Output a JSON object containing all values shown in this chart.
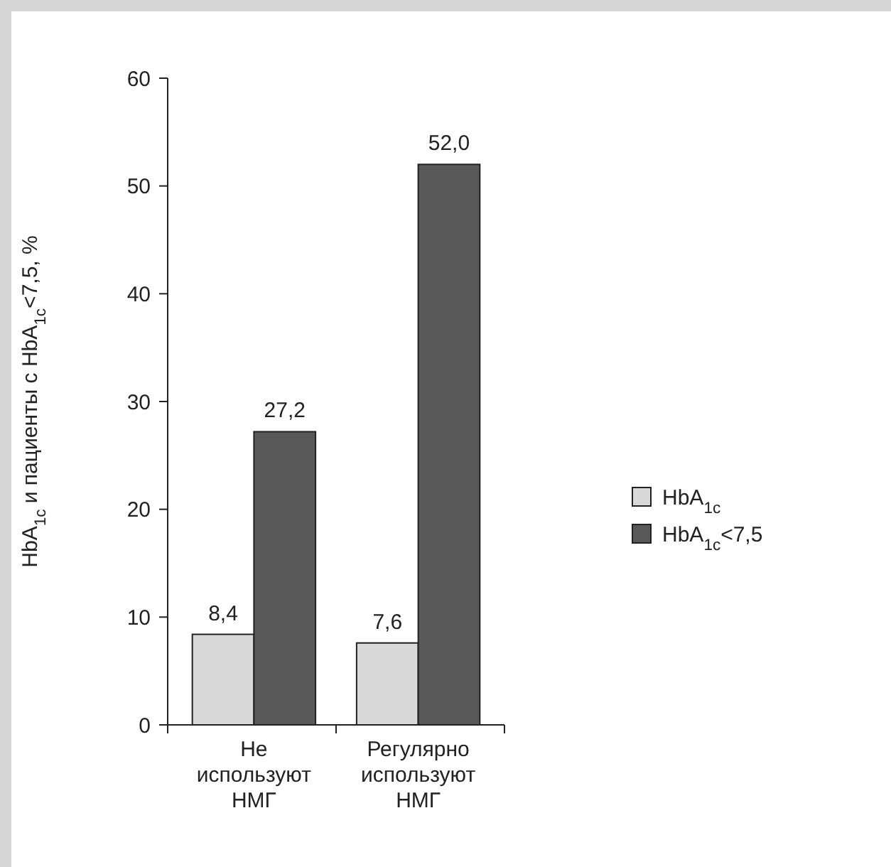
{
  "chart_data": {
    "type": "bar",
    "ylabel": "HbA$_{1c}$ и пациенты с HbA$_{1c}$<7,5, %",
    "categories": [
      "Не используют НМГ",
      "Регулярно используют НМГ"
    ],
    "series": [
      {
        "name": "HbA$_{1c}$",
        "color": "#d9d9d9",
        "values": [
          8.4,
          7.6
        ],
        "value_labels": [
          "8,4",
          "7,6"
        ]
      },
      {
        "name": "HbA$_{1c}$<7,5",
        "color": "#595959",
        "values": [
          27.2,
          52.0
        ],
        "value_labels": [
          "27,2",
          "52,0"
        ]
      }
    ],
    "ylim": [
      0,
      60
    ],
    "yticks": [
      0,
      10,
      20,
      30,
      40,
      50,
      60
    ],
    "grid": false,
    "legend": "right"
  }
}
